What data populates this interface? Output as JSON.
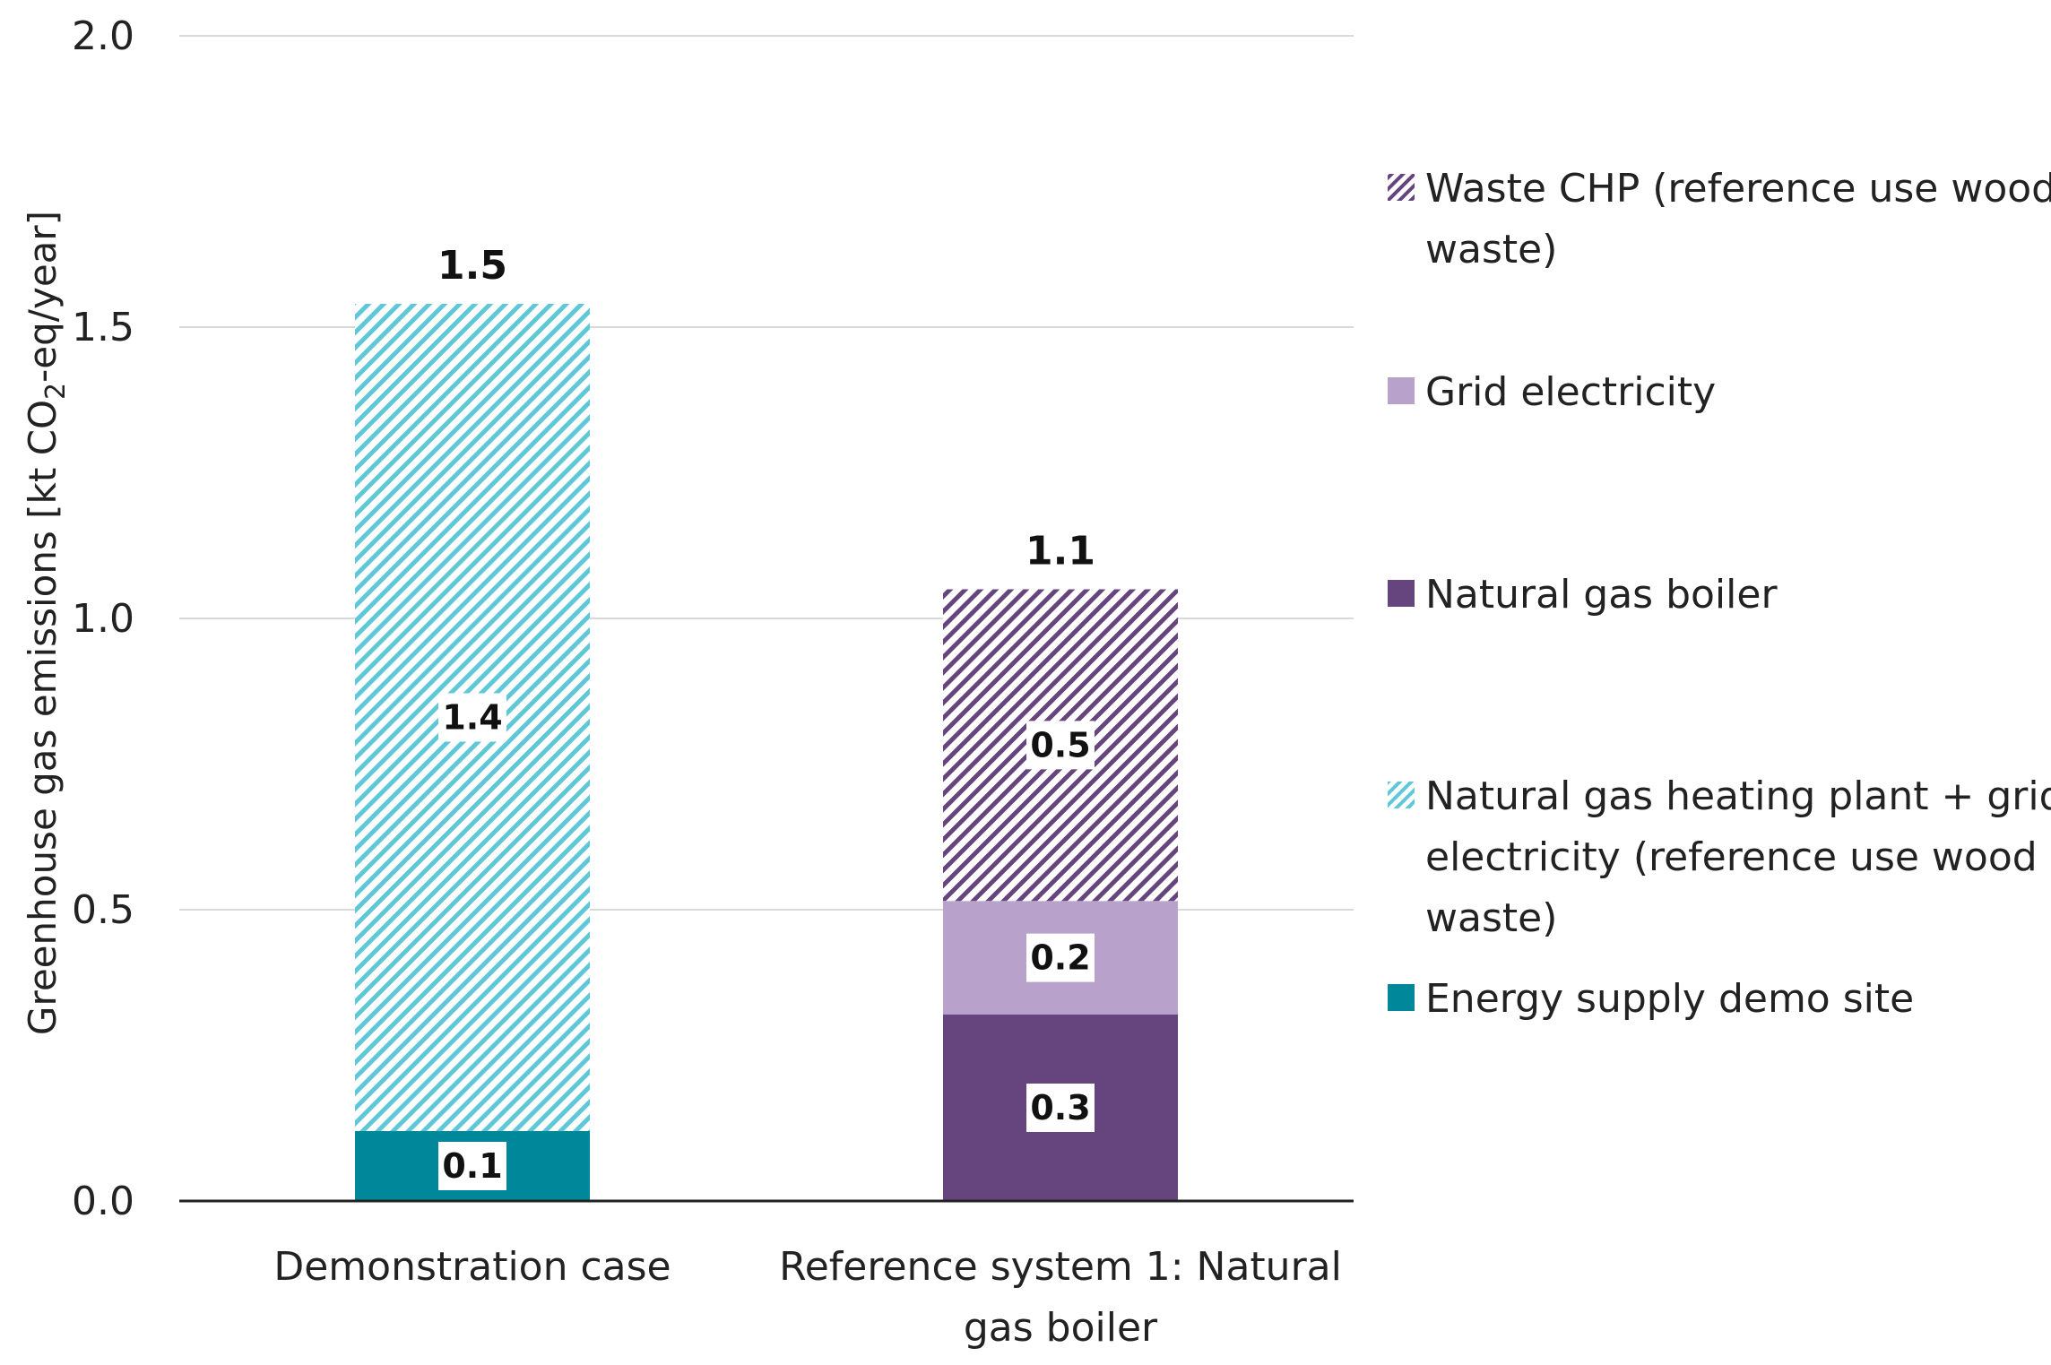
{
  "chart_data": {
    "type": "bar",
    "stacked": true,
    "title": "",
    "xlabel": "",
    "ylabel": {
      "prefix": "Greenhouse  gas emissions  [kt CO",
      "subscript": "2",
      "suffix": "-eq/year]"
    },
    "ylim": [
      0,
      2.0
    ],
    "yticks": [
      0.0,
      0.5,
      1.0,
      1.5,
      2.0
    ],
    "ytick_labels": [
      "0.0",
      "0.5",
      "1.0",
      "1.5",
      "2.0"
    ],
    "grid": true,
    "legend_position": "right",
    "categories": [
      [
        "Demonstration case"
      ],
      [
        "Reference system 1: Natural",
        "gas boiler"
      ]
    ],
    "totals": [
      {
        "value": 1.54,
        "label": "1.5"
      },
      {
        "value": 1.05,
        "label": "1.1"
      }
    ],
    "series": [
      {
        "name": "Energy supply demo site",
        "color": "#00879A",
        "pattern": "solid",
        "values": [
          0.12,
          0
        ],
        "labels": [
          "0.1",
          ""
        ]
      },
      {
        "name": "Natural gas boiler",
        "color": "#66457E",
        "pattern": "solid",
        "values": [
          0,
          0.32
        ],
        "labels": [
          "",
          "0.3"
        ]
      },
      {
        "name": "Grid electricity",
        "color": "#B8A2CB",
        "pattern": "solid",
        "values": [
          0,
          0.195
        ],
        "labels": [
          "",
          "0.2"
        ]
      },
      {
        "name": "Natural gas heating plant + grid electricity (reference use wood waste)",
        "color": "#5FC8D8",
        "pattern": "hatch",
        "values": [
          1.42,
          0
        ],
        "labels": [
          "1.4",
          ""
        ]
      },
      {
        "name": "Waste CHP (reference use wood waste)",
        "color": "#66457E",
        "pattern": "hatch",
        "values": [
          0,
          0.535
        ],
        "labels": [
          "",
          "0.5"
        ]
      }
    ],
    "legend": [
      {
        "lines": [
          "Waste CHP (reference use wood",
          "waste)"
        ],
        "series": 4
      },
      {
        "lines": [
          "Grid electricity"
        ],
        "series": 2
      },
      {
        "lines": [
          "Natural gas boiler"
        ],
        "series": 1
      },
      {
        "lines": [
          "Natural gas heating plant + grid",
          "electricity (reference use wood",
          "waste)"
        ],
        "series": 3
      },
      {
        "lines": [
          "Energy supply demo site"
        ],
        "series": 0
      }
    ]
  }
}
